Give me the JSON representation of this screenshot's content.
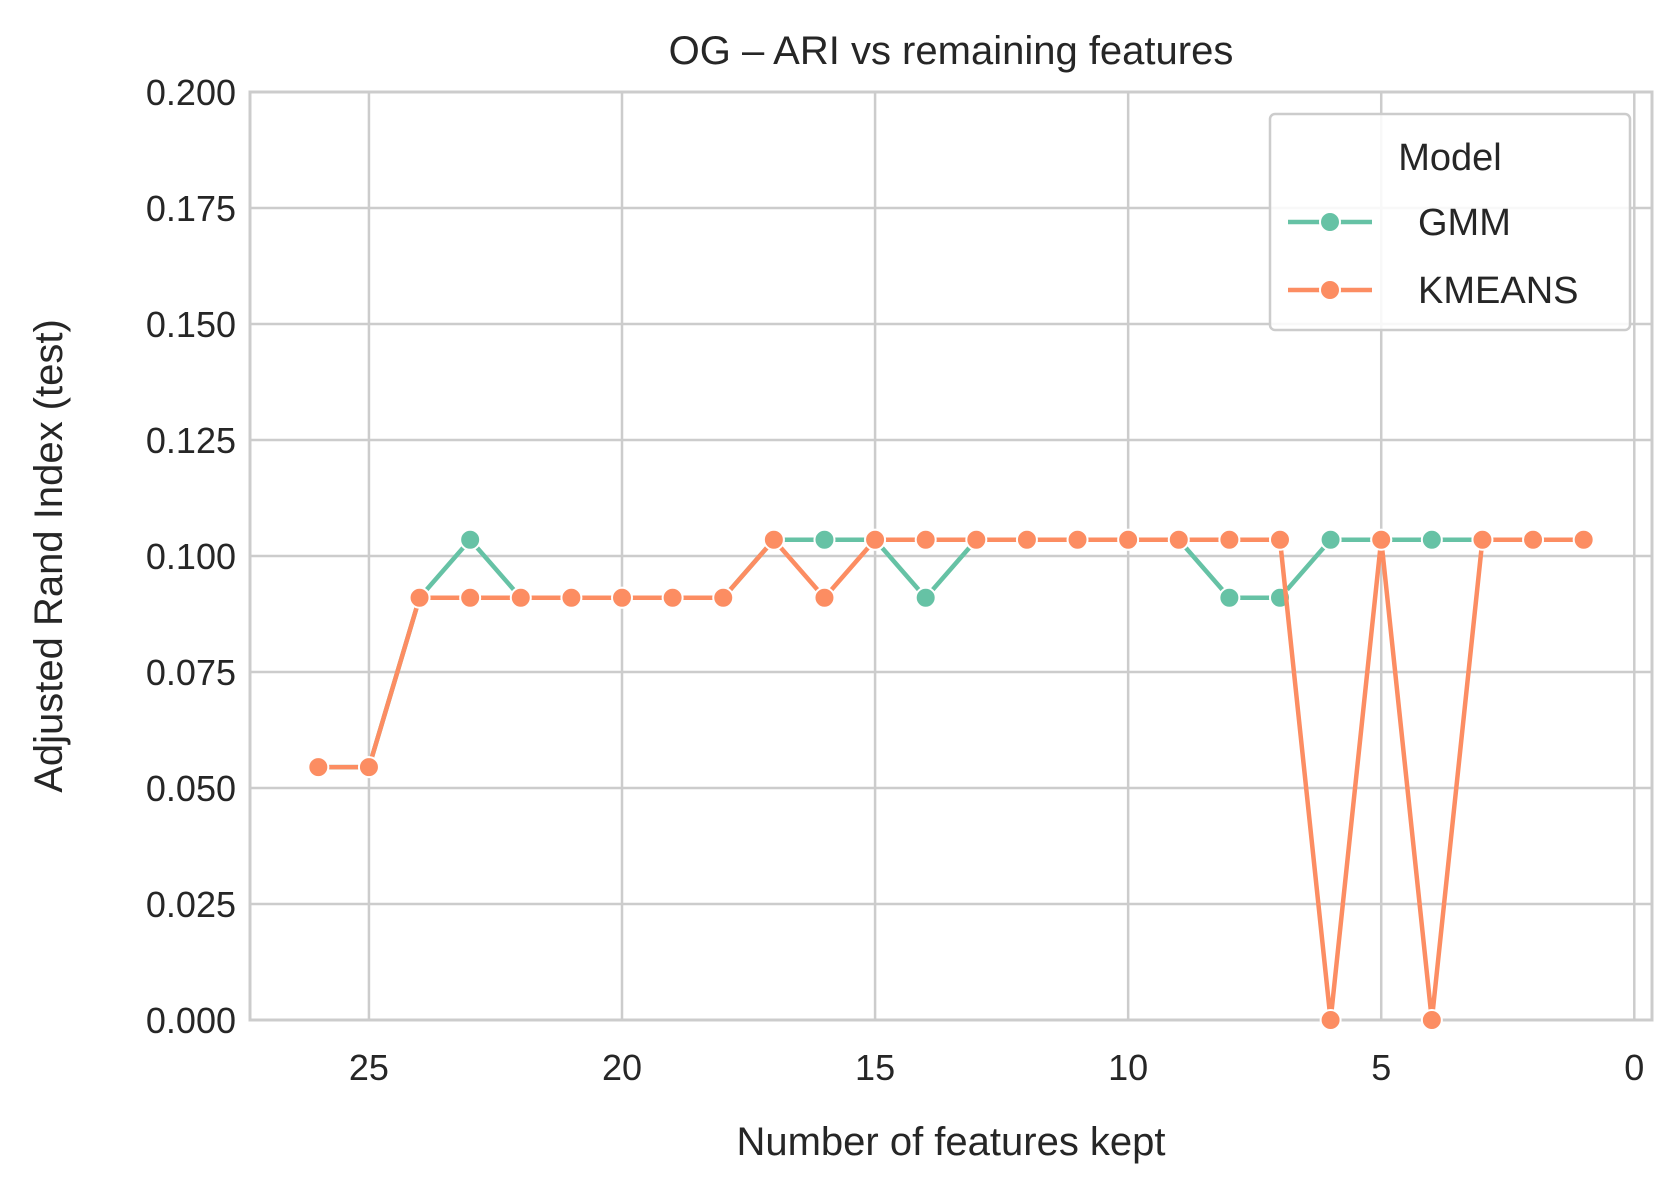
{
  "chart_data": {
    "type": "line",
    "title": "OG – ARI vs remaining features",
    "xlabel": "Number of features kept",
    "ylabel": "Adjusted Rand Index (test)",
    "xlim": [
      27.35,
      -0.35
    ],
    "ylim": [
      0,
      0.2
    ],
    "x_reversed": true,
    "grid": true,
    "legend_title": "Model",
    "legend_position": "top-right",
    "x_ticks": [
      25,
      20,
      15,
      10,
      5,
      0
    ],
    "y_ticks": [
      0.0,
      0.025,
      0.05,
      0.075,
      0.1,
      0.125,
      0.15,
      0.175,
      0.2
    ],
    "x_tick_labels": [
      "25",
      "20",
      "15",
      "10",
      "5",
      "0"
    ],
    "y_tick_labels": [
      "0.000",
      "0.025",
      "0.050",
      "0.075",
      "0.100",
      "0.125",
      "0.150",
      "0.175",
      "0.200"
    ],
    "x": [
      26,
      25,
      24,
      23,
      22,
      21,
      20,
      19,
      18,
      17,
      16,
      15,
      14,
      13,
      12,
      11,
      10,
      9,
      8,
      7,
      6,
      5,
      4,
      3,
      2,
      1
    ],
    "series": [
      {
        "name": "GMM",
        "color": "#66c2a5",
        "values": [
          0.0545,
          0.0545,
          0.091,
          0.1035,
          0.091,
          0.091,
          0.091,
          0.091,
          0.091,
          0.1035,
          0.1035,
          0.1035,
          0.091,
          0.1035,
          0.1035,
          0.1035,
          0.1035,
          0.1035,
          0.091,
          0.091,
          0.1035,
          0.1035,
          0.1035,
          0.1035,
          0.1035,
          0.1035
        ]
      },
      {
        "name": "KMEANS",
        "color": "#fc8d62",
        "values": [
          0.0545,
          0.0545,
          0.091,
          0.091,
          0.091,
          0.091,
          0.091,
          0.091,
          0.091,
          0.1035,
          0.091,
          0.1035,
          0.1035,
          0.1035,
          0.1035,
          0.1035,
          0.1035,
          0.1035,
          0.1035,
          0.1035,
          0.0,
          0.1035,
          0.0,
          0.1035,
          0.1035,
          0.1035
        ]
      }
    ]
  }
}
